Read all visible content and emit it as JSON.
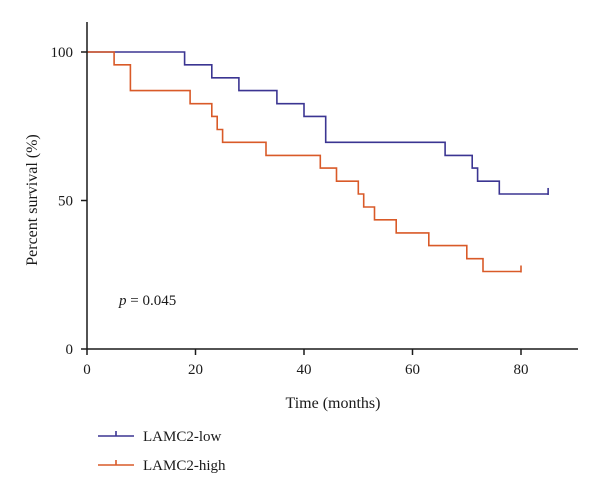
{
  "chart_data": {
    "type": "line",
    "xlabel": "Time (months)",
    "ylabel": "Percent survival (%)",
    "xlim": [
      0,
      90
    ],
    "ylim": [
      0,
      100
    ],
    "x_ticks": [
      0,
      20,
      40,
      60,
      80
    ],
    "y_ticks": [
      0,
      50,
      100
    ],
    "annotation": {
      "prefix": "p",
      "text": " = 0.045"
    },
    "legend_position": "bottom-left",
    "series": [
      {
        "name": "LAMC2-low",
        "color": "#3b3592",
        "points": [
          [
            0,
            100
          ],
          [
            18,
            100
          ],
          [
            18,
            95.7
          ],
          [
            23,
            95.7
          ],
          [
            23,
            91.3
          ],
          [
            28,
            91.3
          ],
          [
            28,
            87
          ],
          [
            35,
            87
          ],
          [
            35,
            82.6
          ],
          [
            40,
            82.6
          ],
          [
            40,
            78.3
          ],
          [
            44,
            78.3
          ],
          [
            44,
            69.6
          ],
          [
            66,
            69.6
          ],
          [
            66,
            65.2
          ],
          [
            71,
            65.2
          ],
          [
            71,
            60.9
          ],
          [
            72,
            60.9
          ],
          [
            72,
            56.5
          ],
          [
            76,
            56.5
          ],
          [
            76,
            52.2
          ],
          [
            85,
            52.2
          ]
        ],
        "censored": [
          [
            85,
            52.2
          ]
        ]
      },
      {
        "name": "LAMC2-high",
        "color": "#d95a28",
        "points": [
          [
            0,
            100
          ],
          [
            5,
            100
          ],
          [
            5,
            95.7
          ],
          [
            8,
            95.7
          ],
          [
            8,
            87
          ],
          [
            19,
            87
          ],
          [
            19,
            82.6
          ],
          [
            23,
            82.6
          ],
          [
            23,
            78.3
          ],
          [
            24,
            78.3
          ],
          [
            24,
            73.9
          ],
          [
            25,
            73.9
          ],
          [
            25,
            69.6
          ],
          [
            33,
            69.6
          ],
          [
            33,
            65.2
          ],
          [
            43,
            65.2
          ],
          [
            43,
            60.9
          ],
          [
            46,
            60.9
          ],
          [
            46,
            56.5
          ],
          [
            50,
            56.5
          ],
          [
            50,
            52.2
          ],
          [
            51,
            52.2
          ],
          [
            51,
            47.8
          ],
          [
            53,
            47.8
          ],
          [
            53,
            43.5
          ],
          [
            57,
            43.5
          ],
          [
            57,
            39.1
          ],
          [
            63,
            39.1
          ],
          [
            63,
            34.8
          ],
          [
            70,
            34.8
          ],
          [
            70,
            30.4
          ],
          [
            73,
            30.4
          ],
          [
            73,
            26.1
          ],
          [
            80,
            26.1
          ]
        ],
        "censored": [
          [
            80,
            26.1
          ]
        ]
      }
    ]
  }
}
